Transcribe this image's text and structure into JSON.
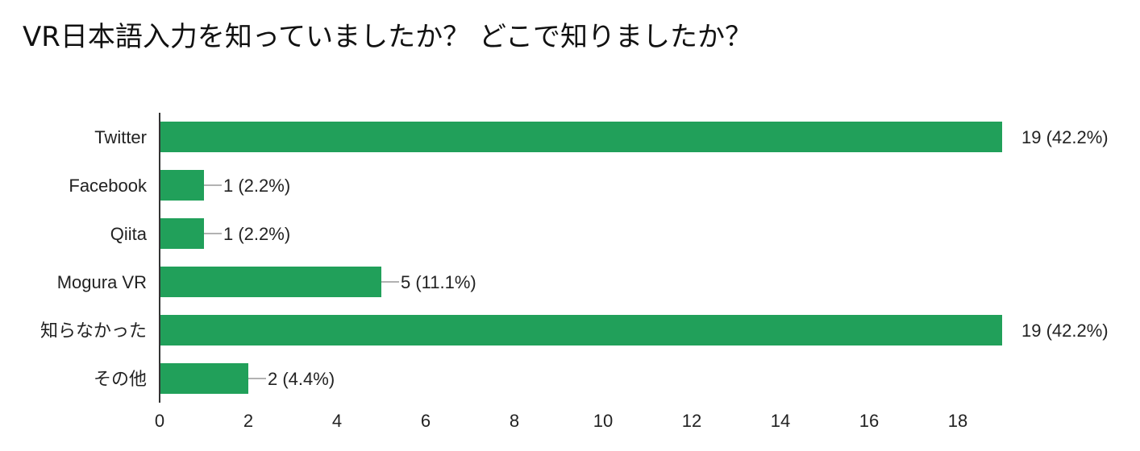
{
  "chart_data": {
    "type": "bar",
    "orientation": "horizontal",
    "title": "VR日本語入力を知っていましたか？ どこで知りましたか？",
    "categories": [
      "Twitter",
      "Facebook",
      "Qiita",
      "Mogura VR",
      "知らなかった",
      "その他"
    ],
    "values": [
      19,
      1,
      1,
      5,
      19,
      2
    ],
    "value_labels": [
      "19 (42.2%)",
      "1 (2.2%)",
      "1 (2.2%)",
      "5 (11.1%)",
      "19 (42.2%)",
      "2 (4.4%)"
    ],
    "xlim": [
      0,
      19
    ],
    "x_ticks": [
      0,
      2,
      4,
      6,
      8,
      10,
      12,
      14,
      16,
      18
    ],
    "grid": false,
    "bar_color": "#21a05a",
    "axis_color": "#333333",
    "leader_color": "#999999"
  }
}
